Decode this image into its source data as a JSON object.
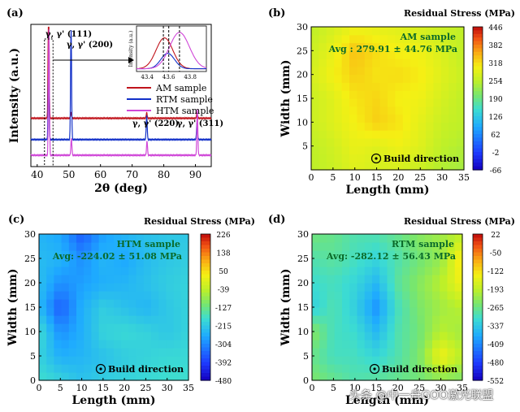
{
  "colors": {
    "am": "#c0141c",
    "rtm": "#1230c8",
    "htm": "#d048d8",
    "axis": "#000000",
    "annotation": "#0a6a2a"
  },
  "chart_data": [
    {
      "panel": "(a)",
      "type": "line",
      "title": "",
      "xlabel": "2θ (deg)",
      "ylabel": "Intensity (a.u.)",
      "xlim": [
        38,
        95
      ],
      "ylim": [
        0,
        1
      ],
      "xticks": [
        "40",
        "50",
        "60",
        "70",
        "80",
        "90"
      ],
      "legend": [
        "AM sample",
        "RTM sample",
        "HTM sample"
      ],
      "legend_position": "inset-right",
      "series": [
        {
          "name": "AM sample",
          "baseline": 0.34,
          "peaks": [
            {
              "x": 43.6,
              "h": 0.95
            },
            {
              "x": 50.7,
              "h": 0.04
            },
            {
              "x": 74.6,
              "h": 0.04
            },
            {
              "x": 90.5,
              "h": 0.04
            }
          ]
        },
        {
          "name": "RTM sample",
          "baseline": 0.19,
          "peaks": [
            {
              "x": 43.6,
              "h": 0.5
            },
            {
              "x": 50.7,
              "h": 0.78
            },
            {
              "x": 74.6,
              "h": 0.17
            },
            {
              "x": 90.5,
              "h": 0.12
            }
          ]
        },
        {
          "name": "HTM sample",
          "baseline": 0.08,
          "peaks": [
            {
              "x": 43.7,
              "h": 0.88
            },
            {
              "x": 50.8,
              "h": 0.12
            },
            {
              "x": 74.7,
              "h": 0.1
            },
            {
              "x": 90.6,
              "h": 0.33
            }
          ]
        }
      ],
      "peak_labels": [
        "γ, γ' (111)",
        "γ, γ' (200)",
        "γ, γ' (220)",
        "γ, γ' (311)"
      ],
      "inset": {
        "ylabel": "Intensity (a.u.)",
        "xticks": [
          "43.4",
          "43.6",
          "43.8"
        ],
        "xlim": [
          43.3,
          43.95
        ],
        "dashed_lines": [
          43.55,
          43.6,
          43.7
        ],
        "series": [
          {
            "name": "AM sample",
            "center": 43.56,
            "width": 0.11,
            "height": 0.68
          },
          {
            "name": "RTM sample",
            "center": 43.59,
            "width": 0.09,
            "height": 0.34
          },
          {
            "name": "HTM sample",
            "center": 43.7,
            "width": 0.13,
            "height": 0.8
          }
        ]
      }
    },
    {
      "panel": "(b)",
      "type": "heatmap",
      "title": "Residual Stress (MPa)",
      "xlabel": "Length (mm)",
      "ylabel": "Width (mm)",
      "xlim": [
        0,
        35
      ],
      "ylim": [
        0,
        30
      ],
      "xticks": [
        "0",
        "5",
        "10",
        "15",
        "20",
        "25",
        "30",
        "35"
      ],
      "yticks": [
        "5",
        "10",
        "15",
        "20",
        "25",
        "30"
      ],
      "colorbar_ticks": [
        "446",
        "382",
        "318",
        "254",
        "190",
        "126",
        "62",
        "-2",
        "-66"
      ],
      "vmin": -66,
      "vmax": 446,
      "sample_label": "AM sample",
      "avg_label": "Avg : 279.91 ± 44.76 MPa",
      "build_direction": "Build direction",
      "grid_x": [
        0,
        5,
        10,
        15,
        20,
        25,
        30,
        35
      ],
      "grid_y": [
        0,
        5,
        10,
        15,
        20,
        25,
        30
      ],
      "values": [
        [
          250,
          262,
          282,
          272,
          272,
          262,
          242,
          232
        ],
        [
          252,
          268,
          292,
          282,
          297,
          282,
          252,
          242
        ],
        [
          262,
          282,
          302,
          327,
          312,
          287,
          262,
          252
        ],
        [
          262,
          282,
          312,
          322,
          302,
          297,
          272,
          252
        ],
        [
          272,
          302,
          327,
          312,
          317,
          307,
          282,
          262
        ],
        [
          262,
          292,
          337,
          317,
          302,
          297,
          277,
          252
        ],
        [
          252,
          272,
          292,
          287,
          282,
          272,
          262,
          252
        ]
      ]
    },
    {
      "panel": "(c)",
      "type": "heatmap",
      "title": "Residual Stress (MPa)",
      "xlabel": "Length (mm)",
      "ylabel": "Width (mm)",
      "xlim": [
        0,
        35
      ],
      "ylim": [
        0,
        30
      ],
      "xticks": [
        "0",
        "5",
        "10",
        "15",
        "20",
        "25",
        "30",
        "35"
      ],
      "yticks": [
        "0",
        "5",
        "10",
        "15",
        "20",
        "25",
        "30"
      ],
      "colorbar_ticks": [
        "226",
        "138",
        "50",
        "-39",
        "-127",
        "-215",
        "-304",
        "-392",
        "-480"
      ],
      "vmin": -480,
      "vmax": 226,
      "sample_label": "HTM sample",
      "avg_label": "Avg: -224.02 ± 51.08 MPa",
      "build_direction": "Build direction",
      "grid_x": [
        0,
        5,
        10,
        15,
        20,
        25,
        30,
        35
      ],
      "grid_y": [
        0,
        5,
        10,
        15,
        20,
        25,
        30
      ],
      "values": [
        [
          -180,
          -200,
          -230,
          -210,
          -200,
          -190,
          -180,
          -180
        ],
        [
          -200,
          -260,
          -250,
          -230,
          -210,
          -200,
          -190,
          -190
        ],
        [
          -180,
          -300,
          -260,
          -200,
          -190,
          -200,
          -220,
          -200
        ],
        [
          -240,
          -360,
          -260,
          -210,
          -230,
          -250,
          -220,
          -200
        ],
        [
          -230,
          -300,
          -280,
          -260,
          -250,
          -230,
          -210,
          -200
        ],
        [
          -240,
          -250,
          -300,
          -250,
          -270,
          -240,
          -220,
          -210
        ],
        [
          -250,
          -270,
          -360,
          -280,
          -250,
          -230,
          -220,
          -220
        ]
      ]
    },
    {
      "panel": "(d)",
      "type": "heatmap",
      "title": "Residual Stress (MPa)",
      "xlabel": "Length (mm)",
      "ylabel": "Width (mm)",
      "xlim": [
        0,
        35
      ],
      "ylim": [
        0,
        30
      ],
      "xticks": [
        "0",
        "5",
        "10",
        "15",
        "20",
        "25",
        "30",
        "35"
      ],
      "yticks": [
        "0",
        "5",
        "10",
        "15",
        "20",
        "25",
        "30"
      ],
      "colorbar_ticks": [
        "22",
        "-50",
        "-122",
        "-193",
        "-265",
        "-337",
        "-409",
        "-480",
        "-552"
      ],
      "vmin": -552,
      "vmax": 22,
      "sample_label": "RTM sample",
      "avg_label": "Avg: -282.12 ± 56.43 MPa",
      "build_direction": "Build direction",
      "grid_x": [
        0,
        5,
        10,
        15,
        20,
        25,
        30,
        35
      ],
      "grid_y": [
        0,
        5,
        10,
        15,
        20,
        25,
        30
      ],
      "values": [
        [
          -250,
          -270,
          -290,
          -280,
          -270,
          -260,
          -240,
          -250
        ],
        [
          -270,
          -300,
          -300,
          -320,
          -290,
          -250,
          -140,
          -200
        ],
        [
          -240,
          -300,
          -310,
          -360,
          -290,
          -260,
          -200,
          -220
        ],
        [
          -330,
          -290,
          -330,
          -400,
          -300,
          -250,
          -220,
          -200
        ],
        [
          -310,
          -300,
          -320,
          -360,
          -280,
          -240,
          -200,
          -140
        ],
        [
          -290,
          -280,
          -300,
          -320,
          -290,
          -260,
          -230,
          -120
        ],
        [
          -260,
          -270,
          -290,
          -290,
          -270,
          -240,
          -220,
          -200
        ]
      ]
    }
  ],
  "watermark": "头条 @中一舟GOO激光联盟"
}
